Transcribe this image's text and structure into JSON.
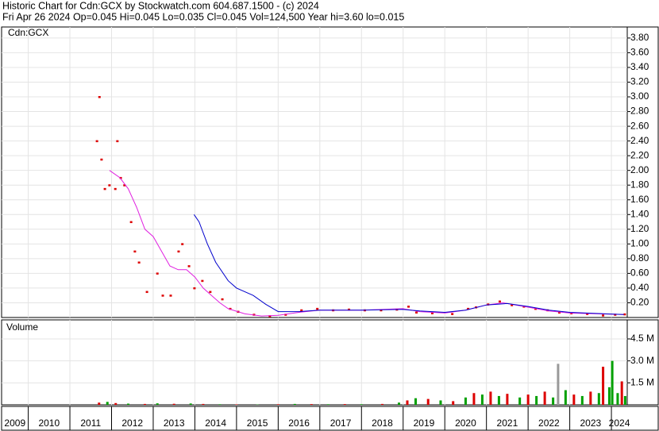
{
  "header": {
    "title": "Historic Chart for Cdn:GCX by Stockwatch.com 604.687.1500 - (c) 2024",
    "quote": "Fri Apr 26 2024  Op=0.045  Hi=0.045  Lo=0.035  Cl=0.045  Vol=124,500  Year hi=3.60  lo=0.015"
  },
  "chart_data": [
    {
      "type": "line",
      "xlim": [
        2009.36,
        2024.38
      ],
      "ylim": [
        0,
        3.95
      ],
      "grid": true,
      "xticks": [
        2010,
        2011,
        2012,
        2013,
        2014,
        2015,
        2016,
        2017,
        2018,
        2019,
        2020,
        2021,
        2022,
        2023,
        2024
      ],
      "yticks": [
        {
          "value": 0.2,
          "label": "0.20"
        },
        {
          "value": 0.4,
          "label": "0.40"
        },
        {
          "value": 0.6,
          "label": "0.60"
        },
        {
          "value": 0.8,
          "label": "0.80"
        },
        {
          "value": 1.0,
          "label": "1.00"
        },
        {
          "value": 1.2,
          "label": "1.20"
        },
        {
          "value": 1.4,
          "label": "1.40"
        },
        {
          "value": 1.6,
          "label": "1.60"
        },
        {
          "value": 1.8,
          "label": "1.80"
        },
        {
          "value": 2.0,
          "label": "2.00"
        },
        {
          "value": 2.2,
          "label": "2.20"
        },
        {
          "value": 2.4,
          "label": "2.40"
        },
        {
          "value": 2.6,
          "label": "2.60"
        },
        {
          "value": 2.8,
          "label": "2.80"
        },
        {
          "value": 3.0,
          "label": "3.00"
        },
        {
          "value": 3.2,
          "label": "3.20"
        },
        {
          "value": 3.4,
          "label": "3.40"
        },
        {
          "value": 3.6,
          "label": "3.60"
        },
        {
          "value": 3.8,
          "label": "3.80"
        }
      ],
      "series": [
        {
          "name": "Cdn:GCX",
          "color": "#dd0000",
          "style": "dots",
          "x": [
            2011.65,
            2011.71,
            2011.76,
            2011.84,
            2011.95,
            2012.09,
            2012.14,
            2012.22,
            2012.31,
            2012.47,
            2012.56,
            2012.66,
            2012.85,
            2013.1,
            2013.23,
            2013.42,
            2013.61,
            2013.7,
            2013.86,
            2013.99,
            2014.18,
            2014.37,
            2014.66,
            2014.85,
            2015.04,
            2015.42,
            2015.8,
            2016.18,
            2016.56,
            2016.94,
            2017.32,
            2017.7,
            2018.08,
            2018.47,
            2018.85,
            2019.13,
            2019.32,
            2019.7,
            2020.18,
            2020.56,
            2020.75,
            2021.04,
            2021.32,
            2021.61,
            2021.9,
            2022.18,
            2022.47,
            2022.75,
            2023.04,
            2023.42,
            2023.8,
            2024.09,
            2024.32
          ],
          "values": [
            2.4,
            3.0,
            2.15,
            1.75,
            1.8,
            1.75,
            2.4,
            1.9,
            1.8,
            1.3,
            0.9,
            0.75,
            0.35,
            0.6,
            0.3,
            0.3,
            0.9,
            1.0,
            0.7,
            0.4,
            0.5,
            0.35,
            0.25,
            0.12,
            0.08,
            0.04,
            0.02,
            0.04,
            0.1,
            0.12,
            0.1,
            0.11,
            0.1,
            0.1,
            0.11,
            0.15,
            0.07,
            0.06,
            0.05,
            0.12,
            0.14,
            0.18,
            0.22,
            0.17,
            0.15,
            0.12,
            0.1,
            0.07,
            0.06,
            0.05,
            0.03,
            0.04,
            0.045
          ]
        },
        {
          "color": "#e020e0",
          "style": "line",
          "x": [
            2011.95,
            2012.2,
            2012.4,
            2012.6,
            2012.8,
            2013.0,
            2013.2,
            2013.4,
            2013.6,
            2013.8,
            2014.0,
            2014.2,
            2014.4,
            2014.6,
            2014.8,
            2015.2,
            2015.6,
            2016.0,
            2016.5,
            2017.0,
            2018.0,
            2019.0,
            2019.4,
            2020.0,
            2020.5,
            2021.0,
            2021.4,
            2022.0,
            2022.5,
            2023.0,
            2024.3
          ],
          "values": [
            2.0,
            1.9,
            1.75,
            1.5,
            1.2,
            1.1,
            0.9,
            0.7,
            0.65,
            0.65,
            0.55,
            0.4,
            0.3,
            0.2,
            0.12,
            0.05,
            0.02,
            0.03,
            0.07,
            0.1,
            0.1,
            0.12,
            0.08,
            0.06,
            0.1,
            0.17,
            0.2,
            0.14,
            0.09,
            0.06,
            0.04
          ]
        },
        {
          "color": "#0000cc",
          "style": "line",
          "x": [
            2013.98,
            2014.1,
            2014.3,
            2014.5,
            2014.8,
            2015.0,
            2015.4,
            2015.7,
            2016.0,
            2016.5,
            2017.0,
            2018.0,
            2019.0,
            2019.4,
            2020.0,
            2020.5,
            2021.0,
            2021.5,
            2022.0,
            2022.5,
            2023.0,
            2024.3
          ],
          "values": [
            1.4,
            1.3,
            1.0,
            0.75,
            0.5,
            0.4,
            0.3,
            0.18,
            0.08,
            0.08,
            0.1,
            0.1,
            0.11,
            0.09,
            0.07,
            0.1,
            0.17,
            0.19,
            0.15,
            0.1,
            0.07,
            0.04
          ]
        }
      ]
    },
    {
      "type": "bar",
      "title": "Volume",
      "xlim": [
        2009.36,
        2024.38
      ],
      "ylim": [
        0,
        5800000
      ],
      "grid": true,
      "xticks": [
        2009,
        2010,
        2011,
        2012,
        2013,
        2014,
        2015,
        2016,
        2017,
        2018,
        2019,
        2020,
        2021,
        2022,
        2023,
        2024
      ],
      "yticks": [
        {
          "value": 1500000,
          "label": "1.5 M"
        },
        {
          "value": 3000000,
          "label": "3.0 M"
        },
        {
          "value": 4500000,
          "label": "4.5 M"
        }
      ],
      "x": [
        2011.7,
        2011.9,
        2012.1,
        2012.4,
        2012.8,
        2013.1,
        2013.5,
        2013.9,
        2014.2,
        2014.6,
        2015.0,
        2015.5,
        2016.0,
        2016.4,
        2016.8,
        2017.2,
        2017.6,
        2018.0,
        2018.5,
        2018.9,
        2019.1,
        2019.3,
        2019.6,
        2019.9,
        2020.2,
        2020.5,
        2020.7,
        2020.9,
        2021.1,
        2021.3,
        2021.5,
        2021.8,
        2022.0,
        2022.2,
        2022.4,
        2022.6,
        2022.72,
        2022.9,
        2023.1,
        2023.3,
        2023.5,
        2023.7,
        2023.8,
        2023.95,
        2024.02,
        2024.15,
        2024.25,
        2024.33
      ],
      "values": [
        150000,
        200000,
        120000,
        80000,
        60000,
        100000,
        70000,
        90000,
        60000,
        40000,
        30000,
        20000,
        40000,
        60000,
        50000,
        40000,
        50000,
        40000,
        60000,
        150000,
        300000,
        450000,
        400000,
        300000,
        250000,
        500000,
        800000,
        700000,
        900000,
        600000,
        750000,
        500000,
        700000,
        600000,
        900000,
        500000,
        2800000,
        1000000,
        700000,
        600000,
        900000,
        800000,
        2600000,
        1200000,
        3000000,
        800000,
        1600000,
        600000
      ],
      "colors": [
        "#dd0000",
        "#00a000",
        "#dd0000",
        "#00a000",
        "#dd0000",
        "#00a000",
        "#dd0000",
        "#00a000",
        "#dd0000",
        "#00a000",
        "#dd0000",
        "#00a000",
        "#dd0000",
        "#00a000",
        "#dd0000",
        "#00a000",
        "#dd0000",
        "#00a000",
        "#dd0000",
        "#00a000",
        "#dd0000",
        "#00a000",
        "#dd0000",
        "#00a000",
        "#dd0000",
        "#00a000",
        "#dd0000",
        "#00a000",
        "#dd0000",
        "#00a000",
        "#dd0000",
        "#00a000",
        "#dd0000",
        "#00a000",
        "#dd0000",
        "#00a000",
        "#999999",
        "#00a000",
        "#dd0000",
        "#00a000",
        "#dd0000",
        "#00a000",
        "#dd0000",
        "#00a000",
        "#00a000",
        "#00a000",
        "#dd0000",
        "#00a000"
      ]
    }
  ]
}
